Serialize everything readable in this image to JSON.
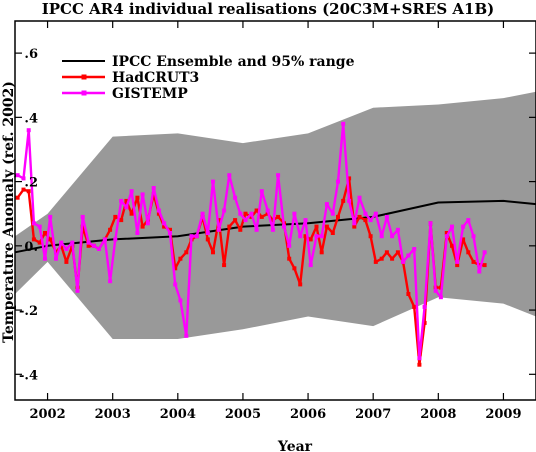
{
  "chart_data": {
    "type": "line",
    "title": "IPCC AR4 individual realisations (20C3M+SRES A1B)",
    "xlabel": "Year",
    "ylabel": "Temperature Anomaly (ref. 2002)",
    "xlim": [
      2001.5,
      2009.5
    ],
    "ylim": [
      -0.48,
      0.7
    ],
    "x_ticks": [
      2002,
      2003,
      2004,
      2005,
      2006,
      2007,
      2008,
      2009
    ],
    "x_tick_labels": [
      "2002",
      "2003",
      "2004",
      "2005",
      "2006",
      "2007",
      "2008",
      "2009"
    ],
    "y_ticks": [
      -0.4,
      -0.2,
      0.0,
      0.2,
      0.4,
      0.6
    ],
    "y_tick_labels": [
      "-.4",
      "-.2",
      "0.",
      ".2",
      ".4",
      ".6"
    ],
    "legend": {
      "position": "top-left"
    },
    "range_band": {
      "name": "IPCC Ensemble and 95% range",
      "color": "#999999",
      "x": [
        2001.5,
        2002.0,
        2003.0,
        2004.0,
        2005.0,
        2006.0,
        2007.0,
        2008.0,
        2009.0,
        2009.5
      ],
      "upper": [
        0.03,
        0.1,
        0.34,
        0.35,
        0.32,
        0.35,
        0.43,
        0.44,
        0.46,
        0.48
      ],
      "lower": [
        -0.15,
        -0.05,
        -0.29,
        -0.29,
        -0.26,
        -0.22,
        -0.25,
        -0.16,
        -0.18,
        -0.22
      ]
    },
    "series": [
      {
        "name": "IPCC Ensemble and 95% range",
        "color": "#000000",
        "marker": false,
        "x": [
          2001.5,
          2002.0,
          2003.0,
          2004.0,
          2005.0,
          2006.0,
          2007.0,
          2008.0,
          2009.0,
          2009.5
        ],
        "y": [
          -0.02,
          0.0,
          0.02,
          0.03,
          0.06,
          0.07,
          0.09,
          0.135,
          0.14,
          0.13
        ]
      },
      {
        "name": "HadCRUT3",
        "color": "#ff0000",
        "marker": true,
        "x": [
          2001.54,
          2001.63,
          2001.71,
          2001.79,
          2001.88,
          2001.96,
          2002.04,
          2002.13,
          2002.21,
          2002.29,
          2002.38,
          2002.46,
          2002.54,
          2002.63,
          2002.71,
          2002.79,
          2002.88,
          2002.96,
          2003.04,
          2003.13,
          2003.21,
          2003.29,
          2003.38,
          2003.46,
          2003.54,
          2003.63,
          2003.71,
          2003.79,
          2003.88,
          2003.96,
          2004.04,
          2004.13,
          2004.21,
          2004.29,
          2004.38,
          2004.46,
          2004.54,
          2004.63,
          2004.71,
          2004.79,
          2004.88,
          2004.96,
          2005.04,
          2005.13,
          2005.21,
          2005.29,
          2005.38,
          2005.46,
          2005.54,
          2005.63,
          2005.71,
          2005.79,
          2005.88,
          2005.96,
          2006.04,
          2006.13,
          2006.21,
          2006.29,
          2006.38,
          2006.46,
          2006.54,
          2006.63,
          2006.71,
          2006.79,
          2006.88,
          2006.96,
          2007.04,
          2007.13,
          2007.21,
          2007.29,
          2007.38,
          2007.46,
          2007.54,
          2007.63,
          2007.71,
          2007.79,
          2007.88,
          2007.96,
          2008.04,
          2008.13,
          2008.21,
          2008.29,
          2008.38,
          2008.46,
          2008.54,
          2008.63,
          2008.71
        ],
        "y": [
          0.15,
          0.175,
          0.17,
          0.02,
          0.01,
          0.04,
          0.02,
          -0.02,
          0.0,
          -0.05,
          0.0,
          -0.13,
          0.06,
          0.0,
          0.0,
          -0.01,
          0.02,
          0.05,
          0.09,
          0.08,
          0.14,
          0.1,
          0.15,
          0.06,
          0.08,
          0.16,
          0.1,
          0.06,
          0.05,
          -0.07,
          -0.04,
          -0.02,
          0.02,
          0.03,
          0.09,
          0.02,
          -0.02,
          0.08,
          -0.06,
          0.06,
          0.08,
          0.05,
          0.1,
          0.09,
          0.11,
          0.09,
          0.1,
          0.08,
          0.09,
          0.07,
          -0.04,
          -0.07,
          -0.12,
          0.03,
          0.02,
          0.06,
          -0.02,
          0.06,
          0.04,
          0.09,
          0.14,
          0.21,
          0.06,
          0.09,
          0.08,
          0.03,
          -0.05,
          -0.04,
          -0.02,
          -0.04,
          -0.02,
          -0.05,
          -0.15,
          -0.19,
          -0.37,
          -0.24,
          0.07,
          -0.13,
          -0.13,
          0.04,
          0.0,
          -0.06,
          0.02,
          -0.02,
          -0.05,
          -0.06,
          -0.06
        ]
      },
      {
        "name": "GISTEMP",
        "color": "#ff00ff",
        "marker": true,
        "x": [
          2001.54,
          2001.63,
          2001.71,
          2001.79,
          2001.88,
          2001.96,
          2002.04,
          2002.13,
          2002.21,
          2002.29,
          2002.38,
          2002.46,
          2002.54,
          2002.63,
          2002.71,
          2002.79,
          2002.88,
          2002.96,
          2003.04,
          2003.13,
          2003.21,
          2003.29,
          2003.38,
          2003.46,
          2003.54,
          2003.63,
          2003.71,
          2003.79,
          2003.88,
          2003.96,
          2004.04,
          2004.13,
          2004.21,
          2004.29,
          2004.38,
          2004.46,
          2004.54,
          2004.63,
          2004.71,
          2004.79,
          2004.88,
          2004.96,
          2005.04,
          2005.13,
          2005.21,
          2005.29,
          2005.38,
          2005.46,
          2005.54,
          2005.63,
          2005.71,
          2005.79,
          2005.88,
          2005.96,
          2006.04,
          2006.13,
          2006.21,
          2006.29,
          2006.38,
          2006.46,
          2006.54,
          2006.63,
          2006.71,
          2006.79,
          2006.88,
          2006.96,
          2007.04,
          2007.13,
          2007.21,
          2007.29,
          2007.38,
          2007.46,
          2007.54,
          2007.63,
          2007.71,
          2007.79,
          2007.88,
          2007.96,
          2008.04,
          2008.13,
          2008.21,
          2008.29,
          2008.38,
          2008.46,
          2008.54,
          2008.63,
          2008.71
        ],
        "y": [
          0.22,
          0.21,
          0.36,
          0.07,
          0.06,
          -0.04,
          0.09,
          -0.04,
          0.01,
          -0.01,
          0.01,
          -0.14,
          0.09,
          0.01,
          0.0,
          -0.01,
          0.02,
          -0.11,
          0.02,
          0.14,
          0.12,
          0.17,
          0.04,
          0.16,
          0.07,
          0.18,
          0.11,
          0.07,
          0.04,
          -0.12,
          -0.17,
          -0.28,
          0.03,
          0.03,
          0.1,
          0.04,
          0.2,
          0.05,
          0.11,
          0.22,
          0.15,
          0.1,
          0.08,
          0.1,
          0.05,
          0.17,
          0.11,
          0.05,
          0.22,
          0.06,
          0.0,
          0.1,
          0.03,
          0.08,
          -0.06,
          0.03,
          0.03,
          0.13,
          0.1,
          0.2,
          0.38,
          0.14,
          0.07,
          0.15,
          0.1,
          0.08,
          0.1,
          0.03,
          0.09,
          0.03,
          0.05,
          -0.05,
          -0.03,
          -0.01,
          -0.35,
          -0.19,
          0.07,
          -0.14,
          -0.16,
          0.03,
          0.06,
          -0.05,
          0.06,
          0.08,
          0.03,
          -0.08,
          -0.02
        ]
      }
    ]
  }
}
